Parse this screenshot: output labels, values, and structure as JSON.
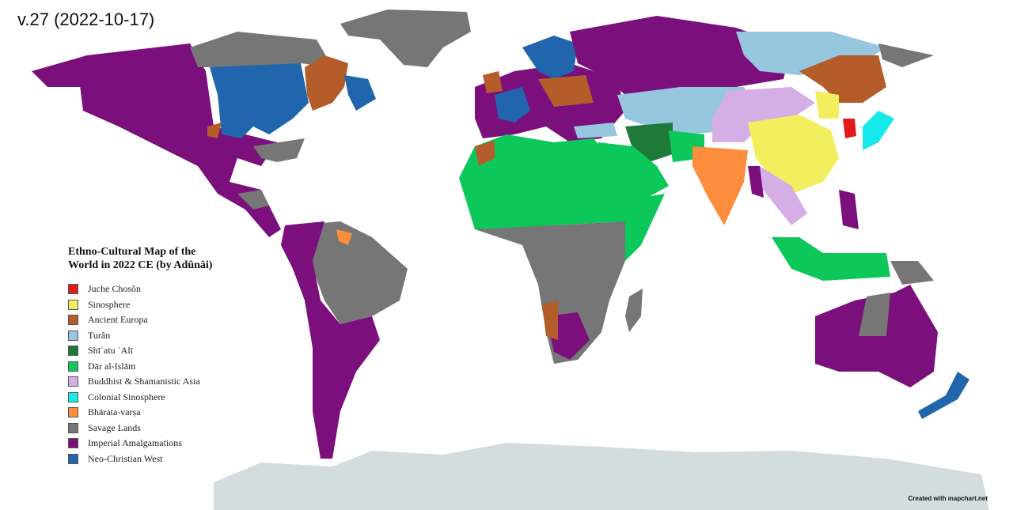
{
  "version_label": "v.27 (2022-10-17)",
  "legend": {
    "title_line1": "Ethno-Cultural Map of the",
    "title_line2": "World in 2022 CE (by Adûnâi)",
    "items": [
      {
        "label": "Juche Chosŏn",
        "color": "#e31a1c"
      },
      {
        "label": "Sinosphere",
        "color": "#f3ee5d"
      },
      {
        "label": "Ancient Europa",
        "color": "#b45c2a"
      },
      {
        "label": "Turân",
        "color": "#97c6df"
      },
      {
        "label": "Shīʿatu ʿAlī",
        "color": "#1f7a3a"
      },
      {
        "label": "Dār al-Islām",
        "color": "#0cc85a"
      },
      {
        "label": "Buddhist & Shamanistic Asia",
        "color": "#d5aee6"
      },
      {
        "label": "Colonial Sinosphere",
        "color": "#16e9ea"
      },
      {
        "label": "Bhārata-varṣa",
        "color": "#fc8d3c"
      },
      {
        "label": "Savage Lands",
        "color": "#767676"
      },
      {
        "label": "Imperial Amalgamations",
        "color": "#7b0f7b"
      },
      {
        "label": "Neo-Christian West",
        "color": "#2166ac"
      }
    ]
  },
  "antarctica_color": "#d3dcdf",
  "credit": "Created with mapchart.net"
}
